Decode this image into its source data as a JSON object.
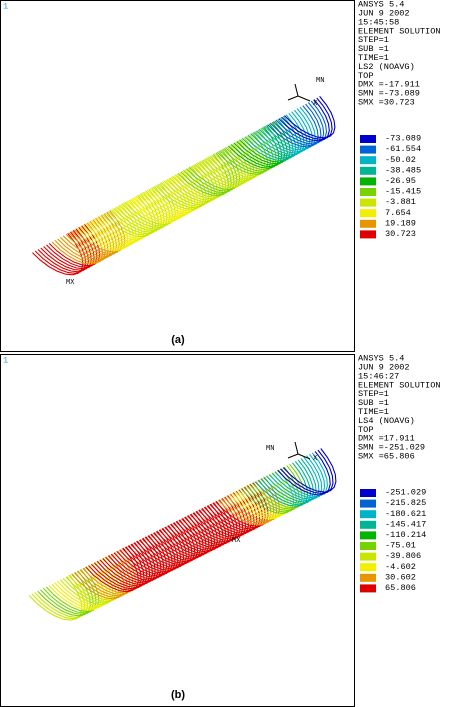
{
  "panels": [
    {
      "viewport": "1",
      "info": [
        "ANSYS 5.4",
        "JUN  9 2002",
        "15:45:58",
        "ELEMENT SOLUTION",
        "STEP=1",
        "SUB =1",
        "TIME=1",
        "LS2      (NOAVG)",
        "TOP",
        "DMX =-17.911",
        "SMN =-73.089",
        "SMX =30.723"
      ],
      "legend": [
        {
          "value": "-73.089",
          "color": "#0000c8"
        },
        {
          "value": "-61.554",
          "color": "#0064d2"
        },
        {
          "value": "-50.02",
          "color": "#00b4c8"
        },
        {
          "value": "-38.485",
          "color": "#00b496"
        },
        {
          "value": "-26.95",
          "color": "#00b400"
        },
        {
          "value": "-15.415",
          "color": "#78d200"
        },
        {
          "value": "-3.881",
          "color": "#c8e600"
        },
        {
          "value": "7.654",
          "color": "#f0f000"
        },
        {
          "value": "19.189",
          "color": "#e69600"
        },
        {
          "value": "30.723",
          "color": "#dc0000"
        }
      ],
      "labels": {
        "mn": "MN",
        "mx": "MX",
        "axis": "X"
      },
      "caption": "(a)"
    },
    {
      "viewport": "1",
      "info": [
        "ANSYS 5.4",
        "JUN  9 2002",
        "15:46:27",
        "ELEMENT SOLUTION",
        "STEP=1",
        "SUB =1",
        "TIME=1",
        "LS4      (NOAVG)",
        "TOP",
        "DMX =17.911",
        "SMN =-251.029",
        "SMX =65.806"
      ],
      "legend": [
        {
          "value": "-251.029",
          "color": "#0000c8"
        },
        {
          "value": "-215.825",
          "color": "#0064d2"
        },
        {
          "value": "-180.621",
          "color": "#00b4c8"
        },
        {
          "value": "-145.417",
          "color": "#00b496"
        },
        {
          "value": "-110.214",
          "color": "#00b400"
        },
        {
          "value": "-75.01",
          "color": "#78d200"
        },
        {
          "value": "-39.806",
          "color": "#c8e600"
        },
        {
          "value": "-4.602",
          "color": "#f0f000"
        },
        {
          "value": "30.602",
          "color": "#e69600"
        },
        {
          "value": "65.806",
          "color": "#dc0000"
        }
      ],
      "labels": {
        "mn": "MN",
        "mx": "MX",
        "axis": "X"
      },
      "caption": "(b)"
    }
  ]
}
